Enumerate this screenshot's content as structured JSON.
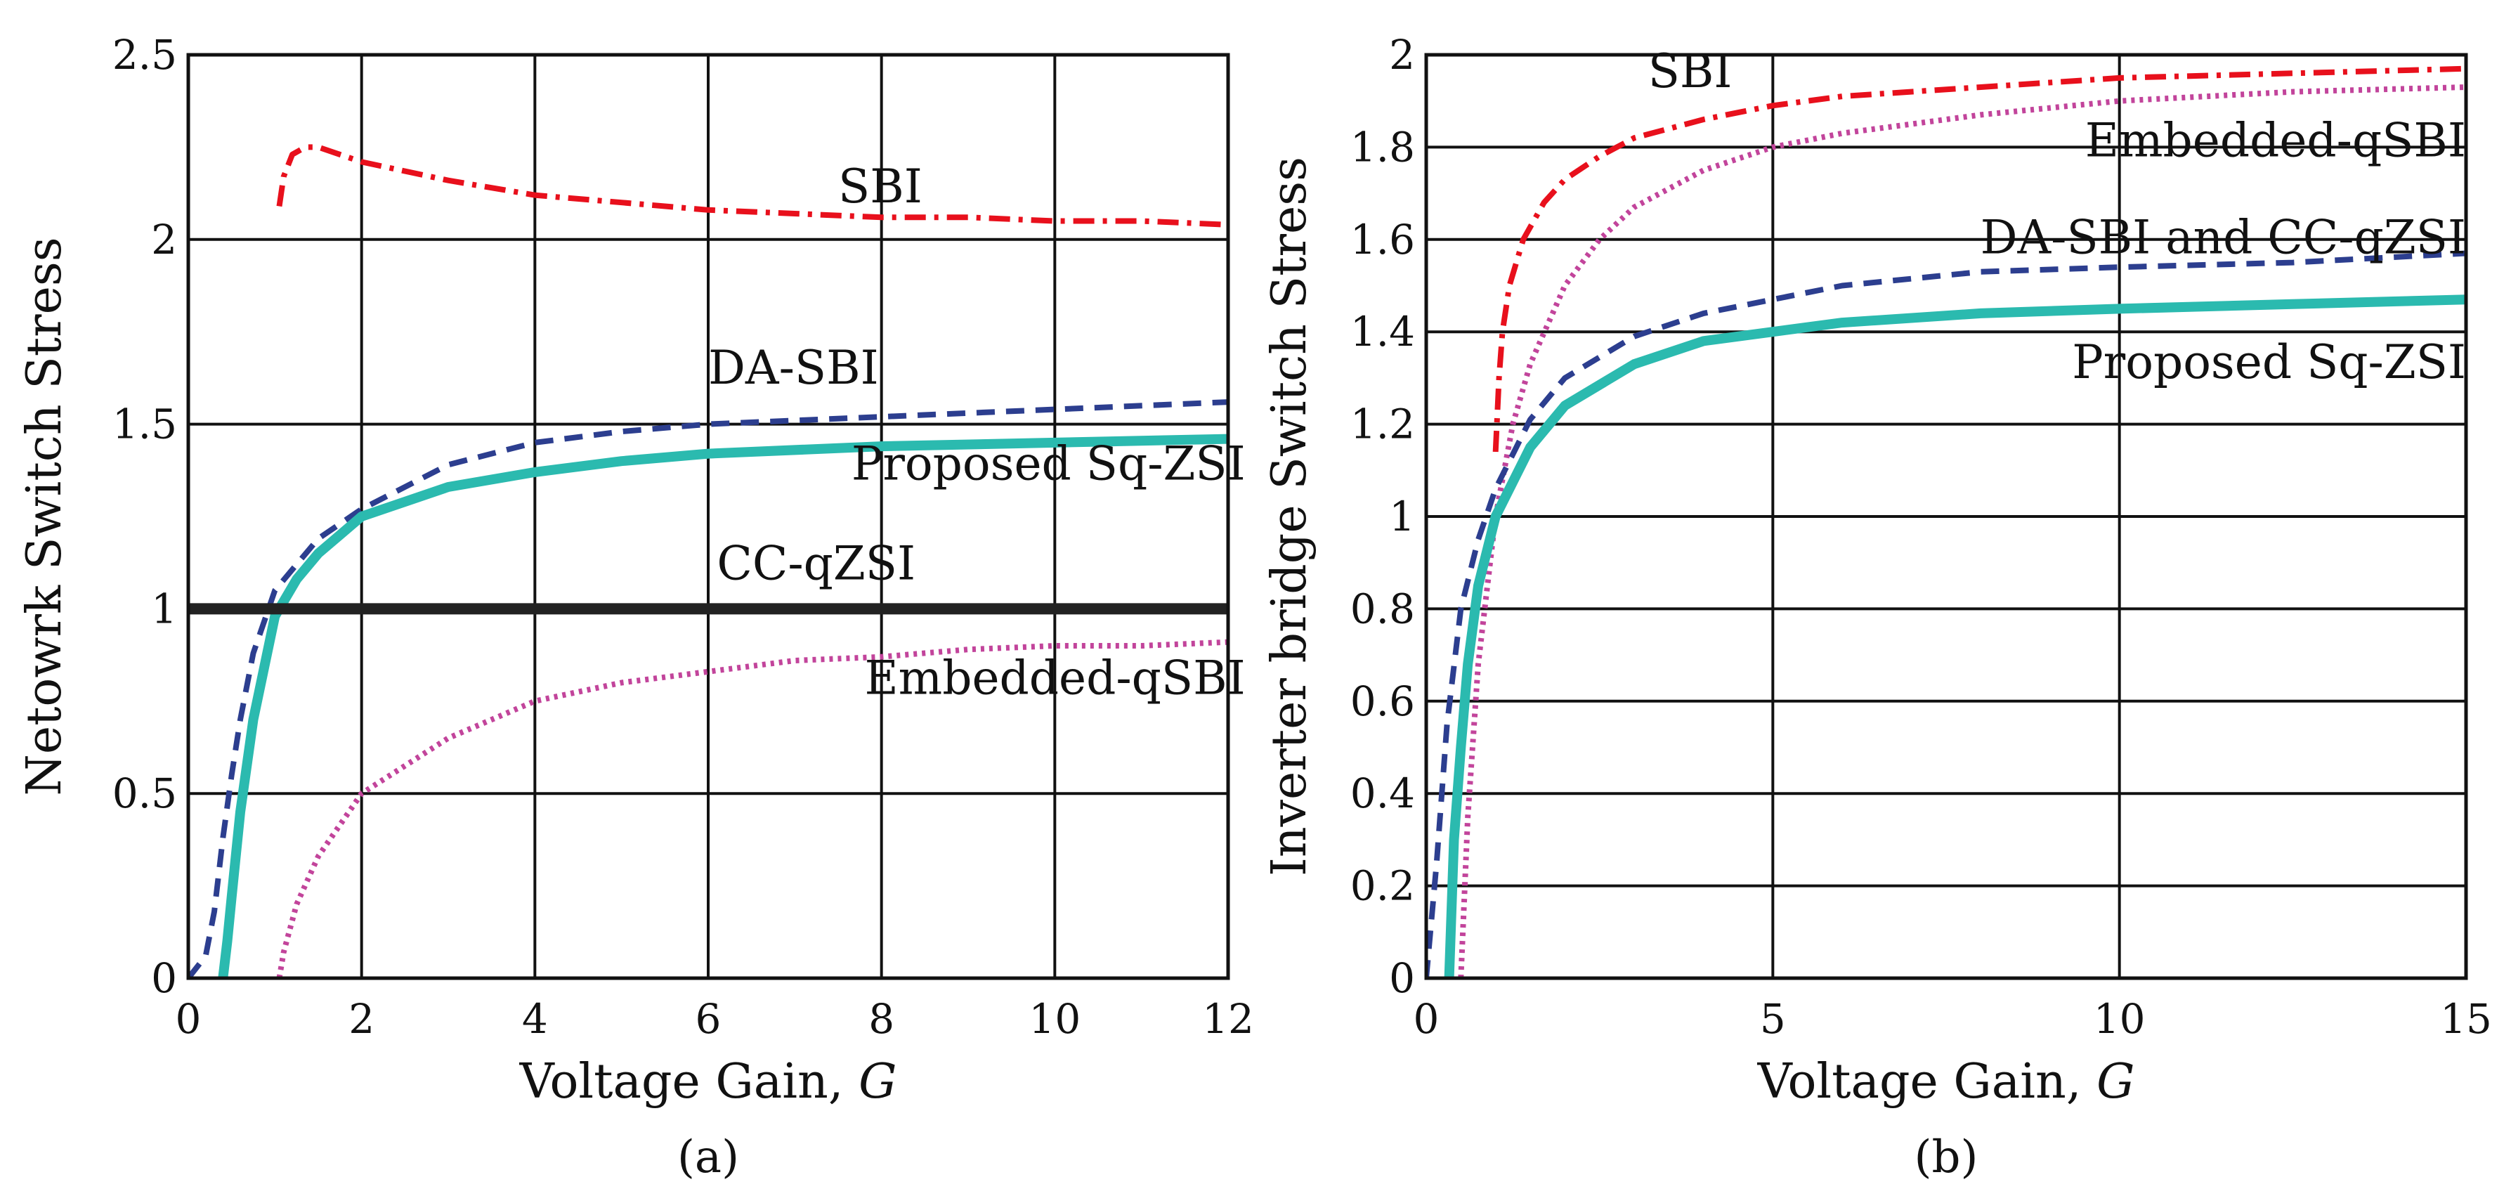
{
  "chart_data": [
    {
      "id": "a",
      "type": "line",
      "panel_label": "(a)",
      "xlabel": "Voltage Gain, ",
      "xlabel_var": "G",
      "ylabel": "Netowrk Switch Stress",
      "xlim": [
        0,
        12
      ],
      "ylim": [
        0,
        2.5
      ],
      "xticks": [
        0,
        2,
        4,
        6,
        8,
        10,
        12
      ],
      "yticks": [
        0,
        0.5,
        1,
        1.5,
        2,
        2.5
      ],
      "xtick_labels": [
        "0",
        "2",
        "4",
        "6",
        "8",
        "10",
        "12"
      ],
      "ytick_labels": [
        "0",
        "0.5",
        "1",
        "1.5",
        "2",
        "2.5"
      ],
      "grid": true,
      "series": [
        {
          "name": "SBI",
          "color": "#e8101c",
          "style": "dashdot",
          "x": [
            1.05,
            1.1,
            1.2,
            1.35,
            1.5,
            2,
            3,
            4,
            5,
            6,
            7,
            8,
            9,
            10,
            11,
            12
          ],
          "y": [
            2.09,
            2.17,
            2.23,
            2.25,
            2.25,
            2.21,
            2.16,
            2.12,
            2.1,
            2.08,
            2.07,
            2.06,
            2.06,
            2.05,
            2.05,
            2.04
          ]
        },
        {
          "name": "DA-SBI",
          "color": "#2c3e8f",
          "style": "dashed",
          "x": [
            0,
            0.2,
            0.3,
            0.4,
            0.5,
            0.6,
            0.75,
            1,
            1.5,
            2,
            3,
            4,
            5,
            6,
            8,
            10,
            12
          ],
          "y": [
            0,
            0.06,
            0.18,
            0.38,
            0.55,
            0.7,
            0.88,
            1.05,
            1.19,
            1.27,
            1.39,
            1.45,
            1.48,
            1.5,
            1.52,
            1.54,
            1.56
          ]
        },
        {
          "name": "Proposed Sq-ZSI",
          "color": "#2bbaaf",
          "style": "solid",
          "x": [
            0.4,
            0.45,
            0.5,
            0.6,
            0.75,
            1,
            1.25,
            1.5,
            2,
            3,
            4,
            5,
            6,
            8,
            10,
            12
          ],
          "y": [
            0,
            0.1,
            0.22,
            0.45,
            0.7,
            0.98,
            1.08,
            1.15,
            1.25,
            1.33,
            1.37,
            1.4,
            1.42,
            1.44,
            1.45,
            1.46
          ]
        },
        {
          "name": "CC-qZSI",
          "color": "#222222",
          "style": "solid-thick",
          "x": [
            0,
            12
          ],
          "y": [
            1,
            1
          ]
        },
        {
          "name": "Embedded-qSBI",
          "color": "#c2449b",
          "style": "dotted",
          "x": [
            1.05,
            1.1,
            1.25,
            1.5,
            2,
            3,
            4,
            5,
            6,
            7,
            8,
            9,
            10,
            11,
            12
          ],
          "y": [
            0,
            0.07,
            0.2,
            0.33,
            0.5,
            0.65,
            0.75,
            0.8,
            0.83,
            0.86,
            0.87,
            0.89,
            0.9,
            0.9,
            0.91
          ]
        }
      ],
      "annotations": [
        {
          "text": "SBI",
          "x": 7.5,
          "y": 2.1
        },
        {
          "text": "DA-SBI",
          "x": 6.0,
          "y": 1.61
        },
        {
          "text": "Proposed Sq-ZSI",
          "x": 12.2,
          "y": 1.35,
          "anchor": "end"
        },
        {
          "text": "CC-qZSI",
          "x": 6.1,
          "y": 1.08
        },
        {
          "text": "Embedded-qSBI",
          "x": 12.2,
          "y": 0.77,
          "anchor": "end"
        }
      ]
    },
    {
      "id": "b",
      "type": "line",
      "panel_label": "(b)",
      "xlabel": "Voltage Gain, ",
      "xlabel_var": "G",
      "ylabel": "Inverter bridge Switch Stress",
      "xlim": [
        0,
        15
      ],
      "ylim": [
        0,
        2
      ],
      "xticks": [
        0,
        5,
        10,
        15
      ],
      "yticks": [
        0,
        0.2,
        0.4,
        0.6,
        0.8,
        1,
        1.2,
        1.4,
        1.6,
        1.8,
        2
      ],
      "xtick_labels": [
        "0",
        "5",
        "10",
        "15"
      ],
      "ytick_labels": [
        "0",
        "0.2",
        "0.4",
        "0.6",
        "0.8",
        "1",
        "1.2",
        "1.4",
        "1.6",
        "1.8",
        "2"
      ],
      "grid": true,
      "series": [
        {
          "name": "SBI",
          "color": "#e8101c",
          "style": "dashdot",
          "x": [
            1.0,
            1.05,
            1.1,
            1.2,
            1.4,
            1.7,
            2,
            2.5,
            3,
            4,
            5,
            6,
            8,
            10,
            12.5,
            15
          ],
          "y": [
            1.14,
            1.3,
            1.4,
            1.5,
            1.6,
            1.68,
            1.73,
            1.78,
            1.82,
            1.86,
            1.89,
            1.91,
            1.93,
            1.95,
            1.96,
            1.97
          ]
        },
        {
          "name": "Embedded-qSBI",
          "color": "#c2449b",
          "style": "dotted",
          "x": [
            0.5,
            0.6,
            0.75,
            1,
            1.25,
            1.5,
            2,
            2.5,
            3,
            4,
            5,
            6,
            8,
            10,
            12.5,
            15
          ],
          "y": [
            0,
            0.35,
            0.68,
            1.0,
            1.2,
            1.33,
            1.5,
            1.6,
            1.67,
            1.75,
            1.8,
            1.83,
            1.87,
            1.9,
            1.92,
            1.93
          ]
        },
        {
          "name": "DA-SBI and CC-qZSI",
          "color": "#2c3e8f",
          "style": "dashed",
          "x": [
            0,
            0.15,
            0.3,
            0.5,
            0.75,
            1,
            1.5,
            2,
            3,
            4,
            5,
            6,
            8,
            10,
            12.5,
            15
          ],
          "y": [
            0,
            0.25,
            0.55,
            0.8,
            0.95,
            1.06,
            1.21,
            1.3,
            1.39,
            1.44,
            1.47,
            1.5,
            1.53,
            1.54,
            1.55,
            1.57
          ]
        },
        {
          "name": "Proposed Sq-ZSI",
          "color": "#2bbaaf",
          "style": "solid",
          "x": [
            0.33,
            0.4,
            0.5,
            0.6,
            0.75,
            1,
            1.5,
            2,
            3,
            4,
            5,
            6,
            8,
            10,
            12.5,
            15
          ],
          "y": [
            0,
            0.3,
            0.5,
            0.68,
            0.85,
            1.0,
            1.15,
            1.24,
            1.33,
            1.38,
            1.4,
            1.42,
            1.44,
            1.45,
            1.46,
            1.47
          ]
        }
      ],
      "annotations": [
        {
          "text": "SBI",
          "x": 3.2,
          "y": 1.93
        },
        {
          "text": "Embedded-qSBI",
          "x": 15.0,
          "y": 1.78,
          "anchor": "end"
        },
        {
          "text": "DA-SBI and CC-qZSI",
          "x": 15.0,
          "y": 1.57,
          "anchor": "end"
        },
        {
          "text": "Proposed Sq-ZSI",
          "x": 15.0,
          "y": 1.3,
          "anchor": "end"
        }
      ]
    }
  ]
}
